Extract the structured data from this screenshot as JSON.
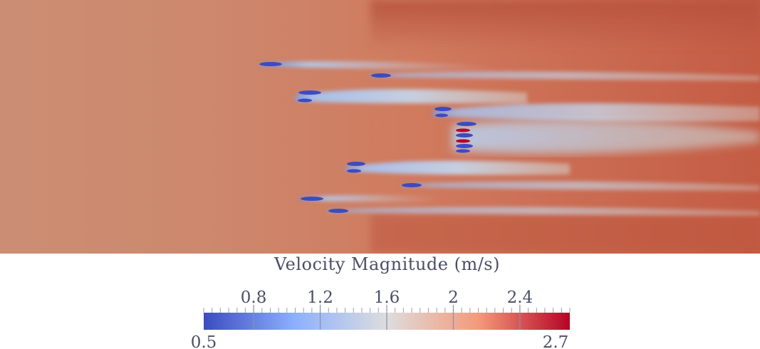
{
  "legend": {
    "title": "Velocity Magnitude (m/s)",
    "min_label": "0.5",
    "max_label": "2.7",
    "ticks": [
      {
        "value": 0.8,
        "label": "0.8"
      },
      {
        "value": 1.2,
        "label": "1.2"
      },
      {
        "value": 1.6,
        "label": "1.6"
      },
      {
        "value": 2.0,
        "label": "2"
      },
      {
        "value": 2.4,
        "label": "2.4"
      }
    ],
    "range": [
      0.5,
      2.7
    ],
    "colormap": "coolwarm",
    "colors": [
      "#3b4cc0",
      "#8db0fe",
      "#dddddd",
      "#f49a7b",
      "#b40426"
    ]
  },
  "field": {
    "background_color": "#c9806a",
    "freestream_color": "#cf7a5f",
    "fast_color": "#b85840",
    "wake_color": "#b9c8de",
    "slow_color": "#3b4cc0"
  }
}
